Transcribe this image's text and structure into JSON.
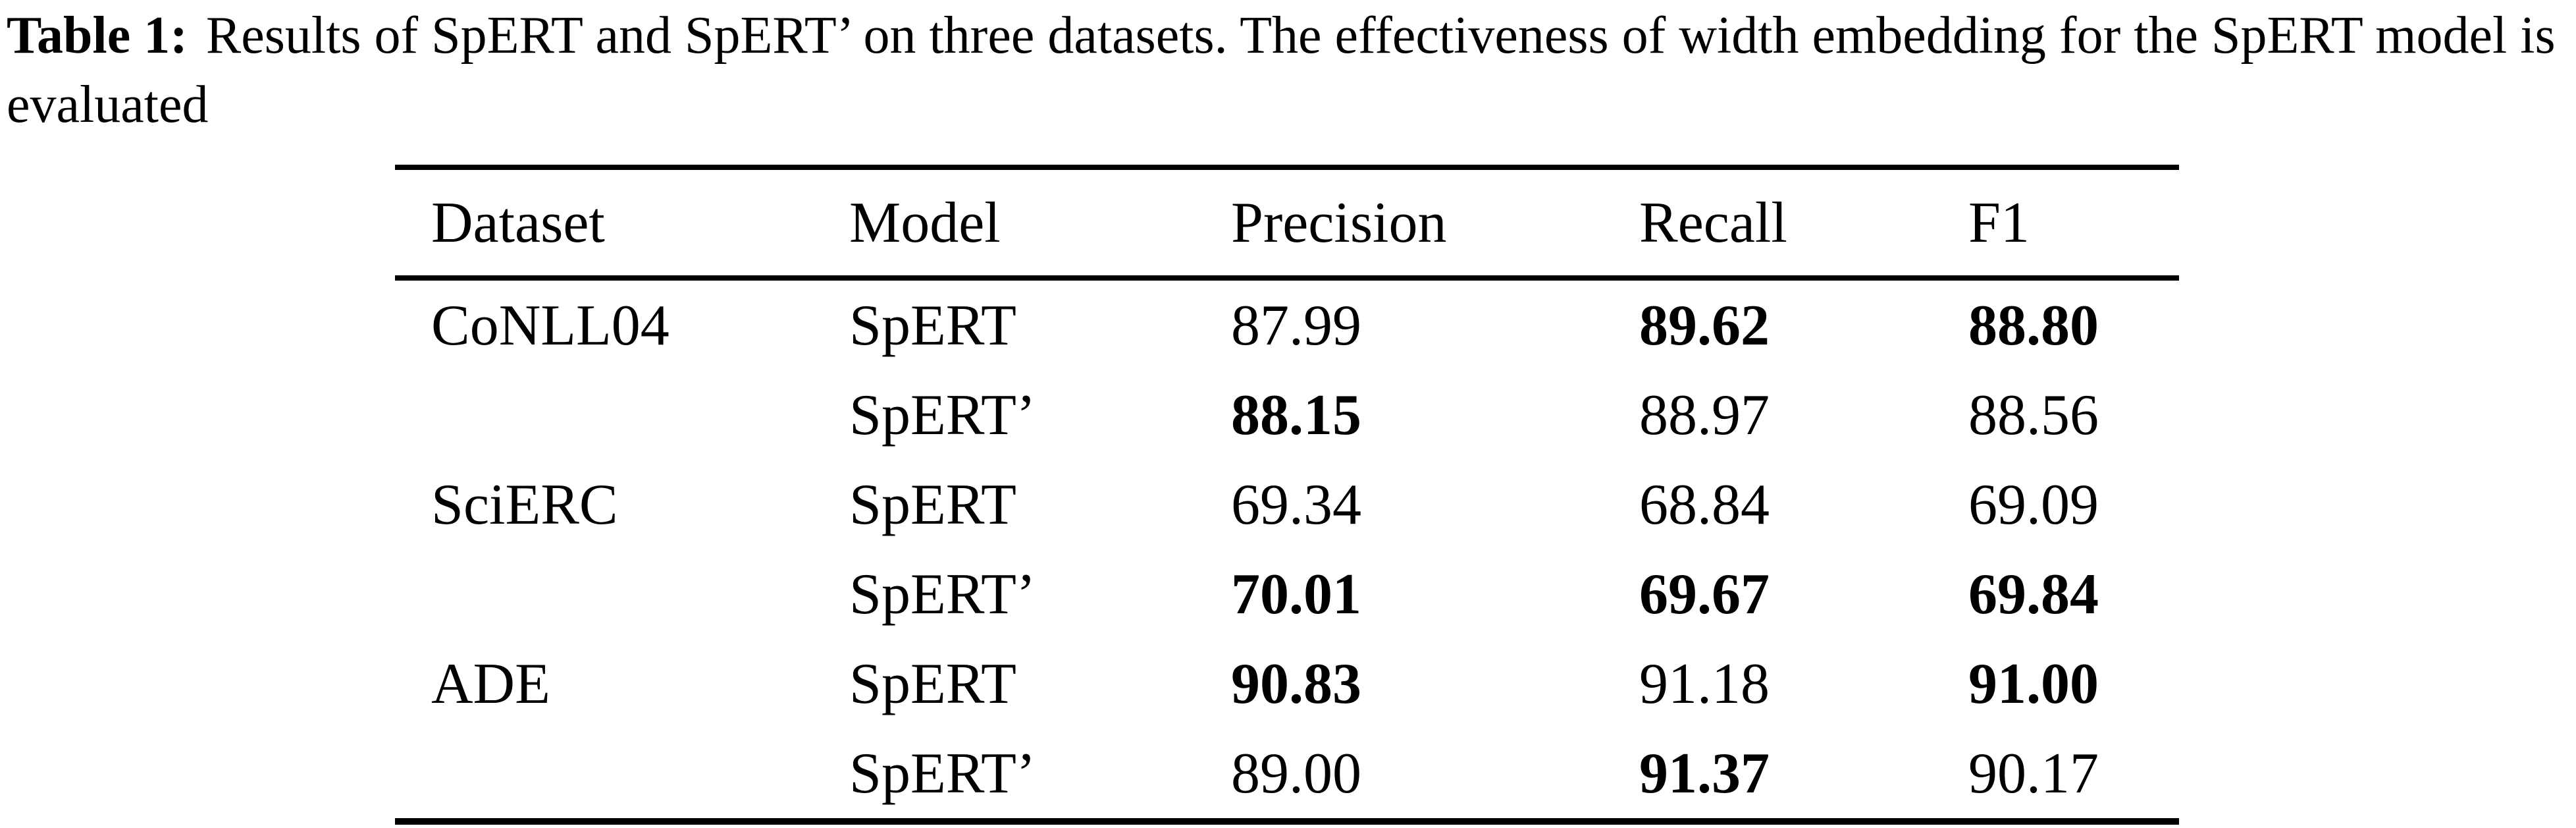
{
  "colors": {
    "background": "#ffffff",
    "text": "#000000",
    "rule": "#000000"
  },
  "caption": {
    "label": "Table 1:",
    "text": "Results of SpERT and SpERT’ on three datasets. The effectiveness of width embedding for the SpERT model is evaluated"
  },
  "table": {
    "headers": [
      "Dataset",
      "Model",
      "Precision",
      "Recall",
      "F1"
    ],
    "rows": [
      {
        "cells": [
          {
            "t": "CoNLL04",
            "b": false
          },
          {
            "t": "SpERT",
            "b": false
          },
          {
            "t": "87.99",
            "b": false
          },
          {
            "t": "89.62",
            "b": true
          },
          {
            "t": "88.80",
            "b": true
          }
        ]
      },
      {
        "cells": [
          {
            "t": "",
            "b": false
          },
          {
            "t": "SpERT’",
            "b": false
          },
          {
            "t": "88.15",
            "b": true
          },
          {
            "t": "88.97",
            "b": false
          },
          {
            "t": "88.56",
            "b": false
          }
        ]
      },
      {
        "cells": [
          {
            "t": "SciERC",
            "b": false
          },
          {
            "t": "SpERT",
            "b": false
          },
          {
            "t": "69.34",
            "b": false
          },
          {
            "t": "68.84",
            "b": false
          },
          {
            "t": "69.09",
            "b": false
          }
        ]
      },
      {
        "cells": [
          {
            "t": "",
            "b": false
          },
          {
            "t": "SpERT’",
            "b": false
          },
          {
            "t": "70.01",
            "b": true
          },
          {
            "t": "69.67",
            "b": true
          },
          {
            "t": "69.84",
            "b": true
          }
        ]
      },
      {
        "cells": [
          {
            "t": "ADE",
            "b": false
          },
          {
            "t": "SpERT",
            "b": false
          },
          {
            "t": "90.83",
            "b": true
          },
          {
            "t": "91.18",
            "b": false
          },
          {
            "t": "91.00",
            "b": true
          }
        ]
      },
      {
        "cells": [
          {
            "t": "",
            "b": false
          },
          {
            "t": "SpERT’",
            "b": false
          },
          {
            "t": "89.00",
            "b": false
          },
          {
            "t": "91.37",
            "b": true
          },
          {
            "t": "90.17",
            "b": false
          }
        ]
      }
    ]
  },
  "chart_data": {
    "type": "table",
    "title": "Table 1: Results of SpERT and SpERT’ on three datasets. The effectiveness of width embedding for the SpERT model is evaluated",
    "columns": [
      "Dataset",
      "Model",
      "Precision",
      "Recall",
      "F1"
    ],
    "rows": [
      [
        "CoNLL04",
        "SpERT",
        "87.99",
        "89.62",
        "88.80"
      ],
      [
        "",
        "SpERT’",
        "88.15",
        "88.97",
        "88.56"
      ],
      [
        "SciERC",
        "SpERT",
        "69.34",
        "68.84",
        "69.09"
      ],
      [
        "",
        "SpERT’",
        "70.01",
        "69.67",
        "69.84"
      ],
      [
        "ADE",
        "SpERT",
        "90.83",
        "91.18",
        "91.00"
      ],
      [
        "",
        "SpERT’",
        "89.00",
        "91.37",
        "90.17"
      ]
    ],
    "bold_values": [
      "89.62",
      "88.80",
      "88.15",
      "70.01",
      "69.67",
      "69.84",
      "90.83",
      "91.00",
      "91.37"
    ]
  }
}
